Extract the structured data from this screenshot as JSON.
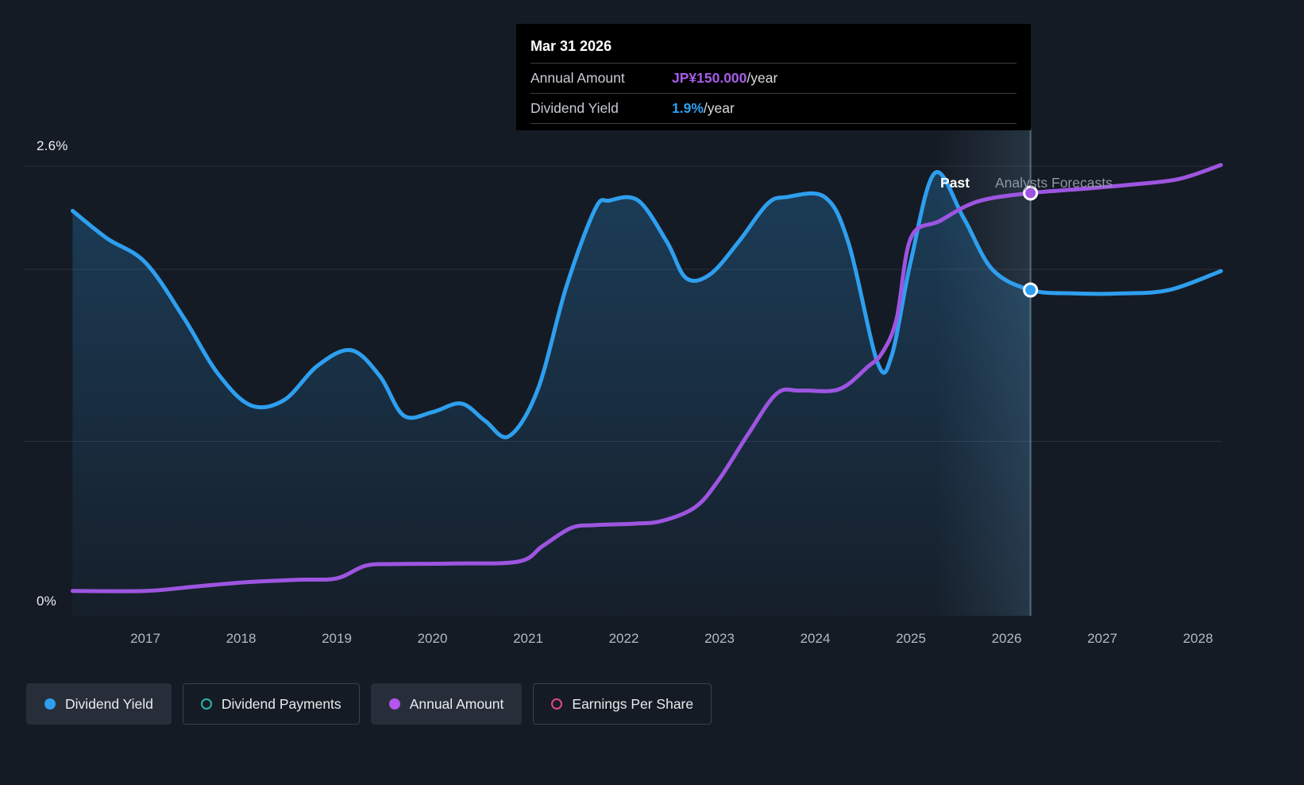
{
  "page": {
    "background": "#151b24"
  },
  "y_axis": {
    "top_label": "2.6%",
    "bottom_label": "0%"
  },
  "annotations": {
    "past_label": "Past",
    "forecast_label": "Analysts Forecasts"
  },
  "tooltip": {
    "title": "Mar 31 2026",
    "rows": [
      {
        "label": "Annual Amount",
        "value": "JP¥150.000",
        "suffix": "/year",
        "color": "#a85ce8"
      },
      {
        "label": "Dividend Yield",
        "value": "1.9%",
        "suffix": "/year",
        "color": "#2e9fef"
      }
    ]
  },
  "legend": {
    "items": [
      {
        "label": "Dividend Yield",
        "color": "#2e9fef",
        "style": "filled",
        "active": true
      },
      {
        "label": "Dividend Payments",
        "color": "#2cb5ac",
        "style": "ring",
        "active": false
      },
      {
        "label": "Annual Amount",
        "color": "#b455ec",
        "style": "filled",
        "active": true
      },
      {
        "label": "Earnings Per Share",
        "color": "#e0478c",
        "style": "ring",
        "active": false
      }
    ]
  },
  "chart_data": {
    "type": "line",
    "title": "Dividend history and forecast",
    "x_ticks": [
      2017,
      2018,
      2019,
      2020,
      2021,
      2022,
      2023,
      2024,
      2025,
      2026,
      2027,
      2028
    ],
    "x_range": [
      2016.24,
      2028.24
    ],
    "divider_x": 2026.25,
    "divider_date": "Mar 31 2026",
    "yield_axis": {
      "unit": "%",
      "min": 0,
      "max": 2.6,
      "gridlines": [
        2.6,
        2.0,
        1.0
      ]
    },
    "amount_axis": {
      "unit": "JP¥/year",
      "min": 0,
      "max": 160
    },
    "series": [
      {
        "name": "Dividend Yield",
        "axis": "yield",
        "color": "#2e9fef",
        "points": [
          [
            2016.24,
            2.34
          ],
          [
            2016.6,
            2.18
          ],
          [
            2017.0,
            2.04
          ],
          [
            2017.4,
            1.72
          ],
          [
            2017.75,
            1.4
          ],
          [
            2018.1,
            1.21
          ],
          [
            2018.45,
            1.24
          ],
          [
            2018.8,
            1.44
          ],
          [
            2019.15,
            1.53
          ],
          [
            2019.45,
            1.38
          ],
          [
            2019.7,
            1.15
          ],
          [
            2020.0,
            1.17
          ],
          [
            2020.3,
            1.22
          ],
          [
            2020.55,
            1.12
          ],
          [
            2020.8,
            1.03
          ],
          [
            2021.1,
            1.3
          ],
          [
            2021.4,
            1.9
          ],
          [
            2021.7,
            2.35
          ],
          [
            2021.85,
            2.4
          ],
          [
            2022.15,
            2.4
          ],
          [
            2022.45,
            2.16
          ],
          [
            2022.65,
            1.95
          ],
          [
            2022.9,
            1.97
          ],
          [
            2023.2,
            2.16
          ],
          [
            2023.5,
            2.38
          ],
          [
            2023.7,
            2.42
          ],
          [
            2024.1,
            2.42
          ],
          [
            2024.35,
            2.15
          ],
          [
            2024.65,
            1.46
          ],
          [
            2024.8,
            1.5
          ],
          [
            2025.0,
            2.05
          ],
          [
            2025.25,
            2.56
          ],
          [
            2025.55,
            2.3
          ],
          [
            2025.85,
            2.0
          ],
          [
            2026.25,
            1.88
          ],
          [
            2026.7,
            1.86
          ],
          [
            2027.2,
            1.86
          ],
          [
            2027.7,
            1.88
          ],
          [
            2028.24,
            1.99
          ]
        ]
      },
      {
        "name": "Annual Amount",
        "axis": "amount",
        "color": "#9d55e0",
        "points": [
          [
            2016.24,
            8
          ],
          [
            2017.0,
            8
          ],
          [
            2017.5,
            9.5
          ],
          [
            2018.0,
            11
          ],
          [
            2018.6,
            12
          ],
          [
            2019.0,
            12.5
          ],
          [
            2019.3,
            17
          ],
          [
            2019.6,
            17.6
          ],
          [
            2020.2,
            17.8
          ],
          [
            2020.9,
            18.5
          ],
          [
            2021.15,
            24
          ],
          [
            2021.45,
            30.5
          ],
          [
            2021.7,
            31.5
          ],
          [
            2022.1,
            32
          ],
          [
            2022.4,
            33
          ],
          [
            2022.75,
            38
          ],
          [
            2023.0,
            48
          ],
          [
            2023.3,
            64
          ],
          [
            2023.6,
            78.5
          ],
          [
            2023.85,
            79.5
          ],
          [
            2024.25,
            80
          ],
          [
            2024.55,
            88
          ],
          [
            2024.7,
            93
          ],
          [
            2024.85,
            105
          ],
          [
            2025.0,
            134
          ],
          [
            2025.3,
            140
          ],
          [
            2025.7,
            147
          ],
          [
            2026.25,
            150
          ],
          [
            2026.8,
            151.5
          ],
          [
            2027.3,
            153
          ],
          [
            2027.8,
            155
          ],
          [
            2028.24,
            160
          ]
        ]
      }
    ],
    "markers": [
      {
        "series": "Annual Amount",
        "x": 2026.25,
        "value": 150
      },
      {
        "series": "Dividend Yield",
        "x": 2026.25,
        "value": 1.88
      }
    ]
  }
}
